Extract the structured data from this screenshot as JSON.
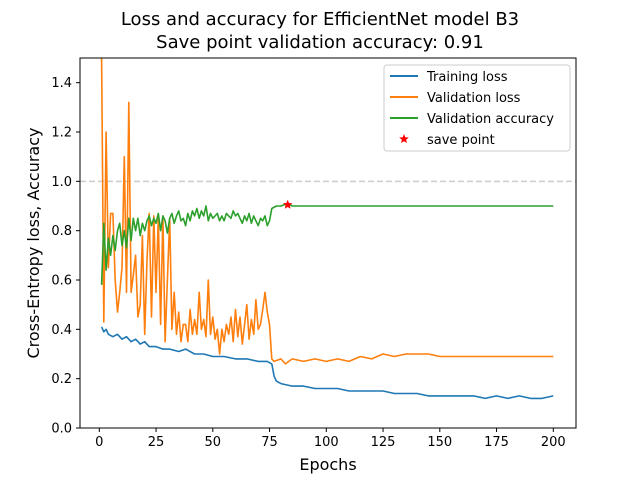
{
  "chart_data": {
    "type": "line",
    "title": "Loss and accuracy for EfficientNet model B3",
    "subtitle": "Save point validation accuracy: 0.91",
    "xlabel": "Epochs",
    "ylabel": "Cross-Entropy loss, Accuracy",
    "xlim": [
      -8.5,
      210
    ],
    "ylim": [
      0,
      1.5
    ],
    "xticks": [
      "0",
      "25",
      "50",
      "75",
      "100",
      "125",
      "150",
      "175",
      "200"
    ],
    "yticks": [
      "0.0",
      "0.2",
      "0.4",
      "0.6",
      "0.8",
      "1.0",
      "1.2",
      "1.4"
    ],
    "reference_line": {
      "y": 1.0,
      "style": "dashed",
      "color": "#cccccc"
    },
    "grid": false,
    "legend_position": "top-right",
    "series": [
      {
        "name": "Training loss",
        "color": "#1f77b4",
        "points": [
          [
            1,
            0.41
          ],
          [
            2,
            0.39
          ],
          [
            3,
            0.4
          ],
          [
            4,
            0.38
          ],
          [
            6,
            0.37
          ],
          [
            8,
            0.38
          ],
          [
            10,
            0.36
          ],
          [
            12,
            0.37
          ],
          [
            14,
            0.35
          ],
          [
            16,
            0.36
          ],
          [
            18,
            0.34
          ],
          [
            20,
            0.35
          ],
          [
            22,
            0.33
          ],
          [
            25,
            0.33
          ],
          [
            28,
            0.32
          ],
          [
            31,
            0.32
          ],
          [
            35,
            0.31
          ],
          [
            38,
            0.32
          ],
          [
            42,
            0.3
          ],
          [
            46,
            0.3
          ],
          [
            50,
            0.29
          ],
          [
            55,
            0.29
          ],
          [
            60,
            0.28
          ],
          [
            65,
            0.28
          ],
          [
            70,
            0.27
          ],
          [
            74,
            0.27
          ],
          [
            76,
            0.26
          ],
          [
            77,
            0.21
          ],
          [
            78,
            0.19
          ],
          [
            80,
            0.18
          ],
          [
            85,
            0.17
          ],
          [
            90,
            0.17
          ],
          [
            95,
            0.16
          ],
          [
            100,
            0.16
          ],
          [
            105,
            0.16
          ],
          [
            110,
            0.15
          ],
          [
            115,
            0.15
          ],
          [
            120,
            0.15
          ],
          [
            125,
            0.15
          ],
          [
            130,
            0.14
          ],
          [
            135,
            0.14
          ],
          [
            140,
            0.14
          ],
          [
            145,
            0.13
          ],
          [
            150,
            0.13
          ],
          [
            155,
            0.13
          ],
          [
            160,
            0.13
          ],
          [
            165,
            0.13
          ],
          [
            170,
            0.12
          ],
          [
            175,
            0.13
          ],
          [
            180,
            0.12
          ],
          [
            185,
            0.13
          ],
          [
            190,
            0.12
          ],
          [
            195,
            0.12
          ],
          [
            200,
            0.13
          ]
        ]
      },
      {
        "name": "Validation loss",
        "color": "#ff7f0e",
        "points": [
          [
            1,
            1.5
          ],
          [
            2,
            0.43
          ],
          [
            3,
            1.2
          ],
          [
            4,
            0.65
          ],
          [
            5,
            0.87
          ],
          [
            6,
            0.87
          ],
          [
            7,
            0.6
          ],
          [
            8,
            0.47
          ],
          [
            9,
            0.55
          ],
          [
            10,
            0.65
          ],
          [
            11,
            1.1
          ],
          [
            12,
            0.55
          ],
          [
            13,
            1.32
          ],
          [
            14,
            0.55
          ],
          [
            15,
            0.62
          ],
          [
            16,
            0.7
          ],
          [
            17,
            0.45
          ],
          [
            18,
            0.5
          ],
          [
            19,
            0.78
          ],
          [
            20,
            0.38
          ],
          [
            21,
            0.68
          ],
          [
            22,
            0.87
          ],
          [
            23,
            0.45
          ],
          [
            24,
            0.86
          ],
          [
            25,
            0.55
          ],
          [
            26,
            0.85
          ],
          [
            27,
            0.42
          ],
          [
            28,
            0.86
          ],
          [
            29,
            0.35
          ],
          [
            30,
            0.6
          ],
          [
            31,
            0.85
          ],
          [
            32,
            0.4
          ],
          [
            33,
            0.55
          ],
          [
            34,
            0.38
          ],
          [
            35,
            0.47
          ],
          [
            36,
            0.35
          ],
          [
            37,
            0.42
          ],
          [
            38,
            0.42
          ],
          [
            39,
            0.35
          ],
          [
            40,
            0.48
          ],
          [
            41,
            0.38
          ],
          [
            42,
            0.44
          ],
          [
            43,
            0.38
          ],
          [
            44,
            0.55
          ],
          [
            45,
            0.4
          ],
          [
            46,
            0.44
          ],
          [
            47,
            0.37
          ],
          [
            48,
            0.6
          ],
          [
            49,
            0.38
          ],
          [
            50,
            0.45
          ],
          [
            51,
            0.36
          ],
          [
            52,
            0.4
          ],
          [
            53,
            0.3
          ],
          [
            54,
            0.4
          ],
          [
            55,
            0.35
          ],
          [
            56,
            0.42
          ],
          [
            57,
            0.38
          ],
          [
            58,
            0.45
          ],
          [
            59,
            0.35
          ],
          [
            60,
            0.48
          ],
          [
            61,
            0.37
          ],
          [
            62,
            0.45
          ],
          [
            63,
            0.34
          ],
          [
            64,
            0.42
          ],
          [
            65,
            0.5
          ],
          [
            66,
            0.36
          ],
          [
            67,
            0.44
          ],
          [
            68,
            0.38
          ],
          [
            69,
            0.52
          ],
          [
            70,
            0.4
          ],
          [
            71,
            0.42
          ],
          [
            72,
            0.48
          ],
          [
            73,
            0.55
          ],
          [
            74,
            0.47
          ],
          [
            75,
            0.42
          ],
          [
            76,
            0.28
          ],
          [
            77,
            0.27
          ],
          [
            80,
            0.28
          ],
          [
            82,
            0.26
          ],
          [
            85,
            0.28
          ],
          [
            90,
            0.27
          ],
          [
            95,
            0.28
          ],
          [
            100,
            0.27
          ],
          [
            105,
            0.28
          ],
          [
            110,
            0.27
          ],
          [
            115,
            0.29
          ],
          [
            120,
            0.28
          ],
          [
            125,
            0.3
          ],
          [
            130,
            0.29
          ],
          [
            135,
            0.3
          ],
          [
            140,
            0.3
          ],
          [
            145,
            0.3
          ],
          [
            150,
            0.29
          ],
          [
            155,
            0.29
          ],
          [
            160,
            0.29
          ],
          [
            165,
            0.29
          ],
          [
            170,
            0.29
          ],
          [
            175,
            0.29
          ],
          [
            180,
            0.29
          ],
          [
            185,
            0.29
          ],
          [
            190,
            0.29
          ],
          [
            195,
            0.29
          ],
          [
            200,
            0.29
          ]
        ]
      },
      {
        "name": "Validation accuracy",
        "color": "#2ca02c",
        "points": [
          [
            1,
            0.58
          ],
          [
            2,
            0.83
          ],
          [
            3,
            0.64
          ],
          [
            4,
            0.77
          ],
          [
            5,
            0.7
          ],
          [
            6,
            0.78
          ],
          [
            7,
            0.72
          ],
          [
            8,
            0.8
          ],
          [
            9,
            0.83
          ],
          [
            10,
            0.74
          ],
          [
            11,
            0.8
          ],
          [
            12,
            0.73
          ],
          [
            13,
            0.85
          ],
          [
            14,
            0.76
          ],
          [
            15,
            0.85
          ],
          [
            16,
            0.8
          ],
          [
            17,
            0.85
          ],
          [
            18,
            0.78
          ],
          [
            19,
            0.83
          ],
          [
            20,
            0.8
          ],
          [
            21,
            0.84
          ],
          [
            22,
            0.86
          ],
          [
            23,
            0.82
          ],
          [
            24,
            0.85
          ],
          [
            25,
            0.83
          ],
          [
            26,
            0.87
          ],
          [
            27,
            0.8
          ],
          [
            28,
            0.86
          ],
          [
            29,
            0.84
          ],
          [
            30,
            0.79
          ],
          [
            31,
            0.85
          ],
          [
            32,
            0.87
          ],
          [
            33,
            0.83
          ],
          [
            34,
            0.86
          ],
          [
            35,
            0.88
          ],
          [
            36,
            0.84
          ],
          [
            37,
            0.85
          ],
          [
            38,
            0.82
          ],
          [
            39,
            0.87
          ],
          [
            40,
            0.84
          ],
          [
            41,
            0.88
          ],
          [
            42,
            0.86
          ],
          [
            43,
            0.89
          ],
          [
            44,
            0.85
          ],
          [
            45,
            0.88
          ],
          [
            46,
            0.86
          ],
          [
            47,
            0.9
          ],
          [
            48,
            0.84
          ],
          [
            49,
            0.87
          ],
          [
            50,
            0.85
          ],
          [
            51,
            0.86
          ],
          [
            52,
            0.87
          ],
          [
            53,
            0.84
          ],
          [
            54,
            0.86
          ],
          [
            55,
            0.84
          ],
          [
            56,
            0.87
          ],
          [
            57,
            0.86
          ],
          [
            58,
            0.85
          ],
          [
            59,
            0.88
          ],
          [
            60,
            0.86
          ],
          [
            61,
            0.87
          ],
          [
            62,
            0.85
          ],
          [
            63,
            0.83
          ],
          [
            64,
            0.86
          ],
          [
            65,
            0.84
          ],
          [
            66,
            0.87
          ],
          [
            67,
            0.83
          ],
          [
            68,
            0.86
          ],
          [
            69,
            0.84
          ],
          [
            70,
            0.82
          ],
          [
            71,
            0.85
          ],
          [
            72,
            0.84
          ],
          [
            73,
            0.86
          ],
          [
            74,
            0.82
          ],
          [
            75,
            0.84
          ],
          [
            76,
            0.89
          ],
          [
            78,
            0.9
          ],
          [
            80,
            0.9
          ],
          [
            83,
            0.91
          ],
          [
            85,
            0.9
          ],
          [
            90,
            0.9
          ],
          [
            95,
            0.9
          ],
          [
            100,
            0.9
          ],
          [
            105,
            0.9
          ],
          [
            110,
            0.9
          ],
          [
            115,
            0.9
          ],
          [
            120,
            0.9
          ],
          [
            125,
            0.9
          ],
          [
            130,
            0.9
          ],
          [
            135,
            0.9
          ],
          [
            140,
            0.9
          ],
          [
            145,
            0.9
          ],
          [
            150,
            0.9
          ],
          [
            155,
            0.9
          ],
          [
            160,
            0.9
          ],
          [
            165,
            0.9
          ],
          [
            170,
            0.9
          ],
          [
            175,
            0.9
          ],
          [
            180,
            0.9
          ],
          [
            185,
            0.9
          ],
          [
            190,
            0.9
          ],
          [
            195,
            0.9
          ],
          [
            200,
            0.9
          ]
        ]
      }
    ],
    "save_point": {
      "name": "save point",
      "x": 83,
      "y": 0.905,
      "color": "#ff0000",
      "marker": "star"
    }
  }
}
